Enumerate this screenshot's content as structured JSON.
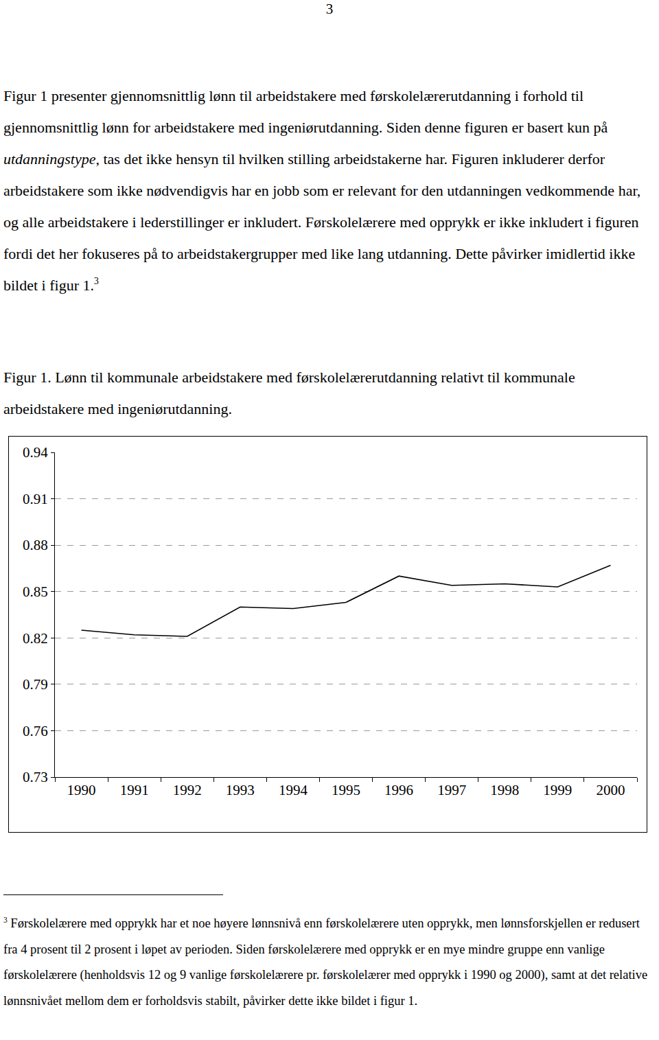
{
  "page_number": "3",
  "paragraph": [
    {
      "text": "Figur 1 presenter gjennomsnittlig lønn til arbeidstakere med førskolelærerutdanning i forhold til gjennomsnittlig lønn for arbeidstakere med ingeniørutdanning. Siden denne figuren er basert kun på "
    },
    {
      "text": "utdanningstype",
      "italic": true
    },
    {
      "text": ", tas det ikke hensyn til hvilken stilling arbeidstakerne har. Figuren inkluderer derfor arbeidstakere som ikke nødvendigvis har en jobb som er relevant for den utdanningen vedkommende har, og alle arbeidstakere i lederstillinger er inkludert. Førskolelærere med opprykk er ikke inkludert i figuren fordi det her fokuseres på to arbeidstakergrupper med like lang utdanning. Dette påvirker imidlertid ikke bildet i figur 1."
    },
    {
      "text": "3",
      "sup": true
    }
  ],
  "figure_caption": "Figur 1. Lønn til kommunale arbeidstakere med førskolelærerutdanning relativt til kommunale arbeidstakere med ingeniørutdanning.",
  "chart_data": {
    "type": "line",
    "categories": [
      "1990",
      "1991",
      "1992",
      "1993",
      "1994",
      "1995",
      "1996",
      "1997",
      "1998",
      "1999",
      "2000"
    ],
    "values": [
      0.825,
      0.822,
      0.821,
      0.84,
      0.839,
      0.843,
      0.86,
      0.854,
      0.855,
      0.853,
      0.867
    ],
    "color": "#000000",
    "ylim": [
      0.73,
      0.94
    ],
    "yticks": [
      0.73,
      0.76,
      0.79,
      0.82,
      0.85,
      0.88,
      0.91,
      0.94
    ],
    "grid": true
  },
  "footnote": {
    "marker": "3",
    "text": "Førskolelærere med opprykk har et noe høyere lønnsnivå enn førskolelærere uten opprykk, men lønnsforskjellen er redusert fra 4 prosent til 2 prosent i løpet av perioden. Siden førskolelærere med opprykk er en mye mindre gruppe enn vanlige førskolelærere (henholdsvis 12 og 9 vanlige førskolelærere pr. førskolelærer med opprykk i 1990 og 2000), samt at det relative lønnsnivået mellom dem er forholdsvis stabilt, påvirker dette ikke bildet i figur 1."
  }
}
